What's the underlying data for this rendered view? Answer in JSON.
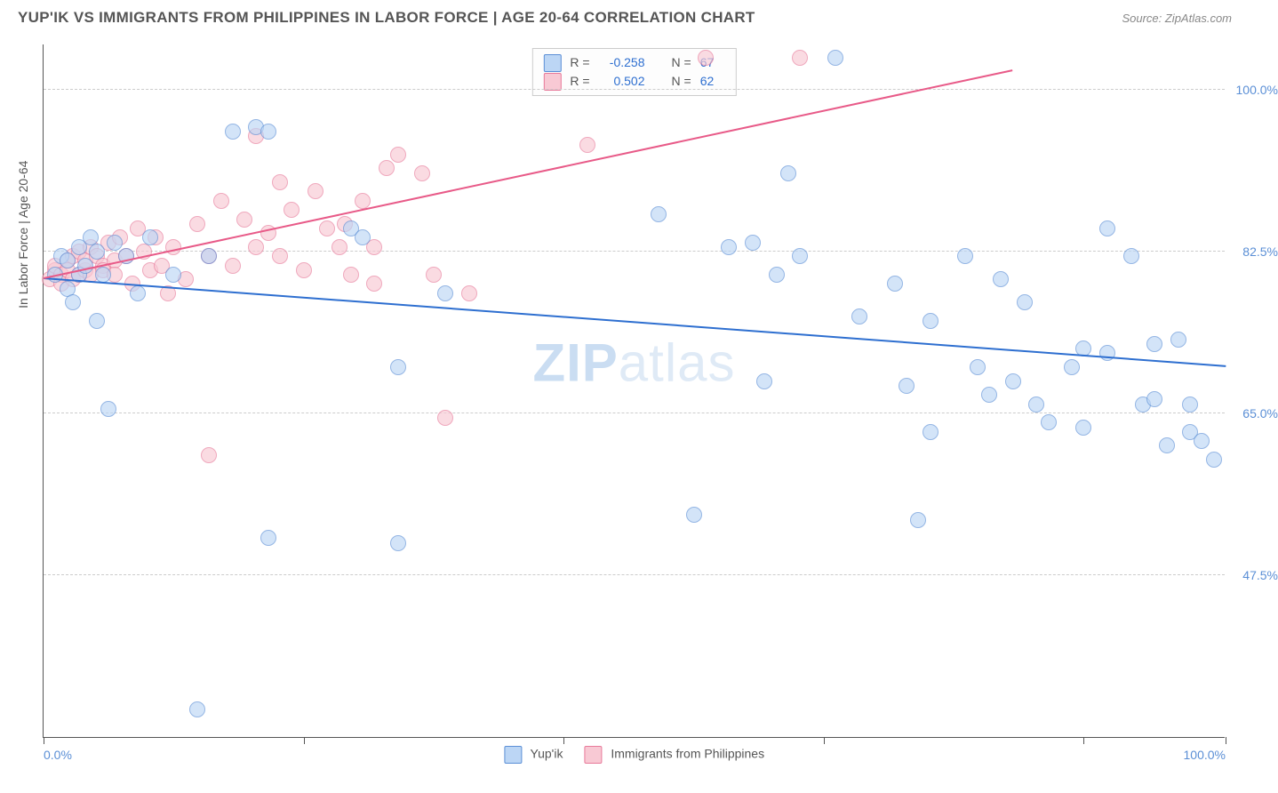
{
  "header": {
    "title": "YUP'IK VS IMMIGRANTS FROM PHILIPPINES IN LABOR FORCE | AGE 20-64 CORRELATION CHART",
    "source": "Source: ZipAtlas.com"
  },
  "watermark": {
    "part1": "ZIP",
    "part2": "atlas"
  },
  "chart": {
    "type": "scatter",
    "ylabel": "In Labor Force | Age 20-64",
    "background_color": "#ffffff",
    "grid_color": "#cccccc",
    "axis_color": "#555555",
    "label_color": "#5b8fd6",
    "xlim": [
      0,
      100
    ],
    "ylim": [
      30,
      105
    ],
    "yticks": [
      {
        "v": 47.5,
        "label": "47.5%"
      },
      {
        "v": 65.0,
        "label": "65.0%"
      },
      {
        "v": 82.5,
        "label": "82.5%"
      },
      {
        "v": 100.0,
        "label": "100.0%"
      }
    ],
    "xticks_major": [
      0,
      100
    ],
    "xticks_minor": [
      22,
      44,
      66,
      88
    ],
    "xtick_labels": {
      "0": "0.0%",
      "100": "100.0%"
    },
    "point_radius": 9,
    "point_opacity": 0.65,
    "series": {
      "blue": {
        "label": "Yup'ik",
        "fill_color": "#bcd6f5",
        "stroke_color": "#5b8fd6",
        "line_color": "#2e6fd0",
        "R": "-0.258",
        "N": "67",
        "trend": {
          "x1": 0,
          "y1": 79.5,
          "x2": 100,
          "y2": 70.0
        },
        "points": [
          [
            1,
            80
          ],
          [
            1.5,
            82
          ],
          [
            2,
            78.5
          ],
          [
            2,
            81.5
          ],
          [
            2.5,
            77
          ],
          [
            3,
            83
          ],
          [
            3,
            80
          ],
          [
            3.5,
            81
          ],
          [
            4,
            84
          ],
          [
            4.5,
            82.5
          ],
          [
            4.5,
            75
          ],
          [
            5,
            80
          ],
          [
            5.5,
            65.5
          ],
          [
            6,
            83.5
          ],
          [
            7,
            82
          ],
          [
            8,
            78
          ],
          [
            9,
            84
          ],
          [
            11,
            80
          ],
          [
            13,
            33
          ],
          [
            14,
            82
          ],
          [
            16,
            95.5
          ],
          [
            18,
            96
          ],
          [
            19,
            95.5
          ],
          [
            19,
            51.5
          ],
          [
            26,
            85
          ],
          [
            27,
            84
          ],
          [
            30,
            70
          ],
          [
            30,
            51
          ],
          [
            34,
            78
          ],
          [
            52,
            86.5
          ],
          [
            55,
            54
          ],
          [
            58,
            83
          ],
          [
            60,
            83.5
          ],
          [
            61,
            68.5
          ],
          [
            62,
            80
          ],
          [
            63,
            91
          ],
          [
            64,
            82
          ],
          [
            67,
            103.5
          ],
          [
            69,
            75.5
          ],
          [
            72,
            79
          ],
          [
            73,
            68
          ],
          [
            74,
            53.5
          ],
          [
            75,
            63
          ],
          [
            75,
            75
          ],
          [
            78,
            82
          ],
          [
            79,
            70
          ],
          [
            80,
            67
          ],
          [
            81,
            79.5
          ],
          [
            82,
            68.5
          ],
          [
            83,
            77
          ],
          [
            84,
            66
          ],
          [
            85,
            64
          ],
          [
            87,
            70
          ],
          [
            88,
            72
          ],
          [
            88,
            63.5
          ],
          [
            90,
            71.5
          ],
          [
            90,
            85
          ],
          [
            92,
            82
          ],
          [
            93,
            66
          ],
          [
            94,
            72.5
          ],
          [
            94,
            66.5
          ],
          [
            95,
            61.5
          ],
          [
            96,
            73
          ],
          [
            97,
            63
          ],
          [
            97,
            66
          ],
          [
            98,
            62
          ],
          [
            99,
            60
          ]
        ]
      },
      "pink": {
        "label": "Immigrants from Philippines",
        "fill_color": "#f8c9d4",
        "stroke_color": "#e87a9a",
        "line_color": "#e85a88",
        "R": "0.502",
        "N": "62",
        "trend": {
          "x1": 0,
          "y1": 79.5,
          "x2": 82,
          "y2": 102.0
        },
        "points": [
          [
            0.5,
            79.5
          ],
          [
            1,
            80.5
          ],
          [
            1,
            81
          ],
          [
            1.5,
            80
          ],
          [
            1.5,
            79
          ],
          [
            2,
            81.5
          ],
          [
            2,
            80.5
          ],
          [
            2.5,
            82
          ],
          [
            2.5,
            79.5
          ],
          [
            3,
            80
          ],
          [
            3,
            82.5
          ],
          [
            3.5,
            80.5
          ],
          [
            3.5,
            81.5
          ],
          [
            4,
            80
          ],
          [
            4,
            83
          ],
          [
            4.5,
            82
          ],
          [
            5,
            81
          ],
          [
            5,
            80.5
          ],
          [
            5.5,
            83.5
          ],
          [
            6,
            81.5
          ],
          [
            6,
            80
          ],
          [
            6.5,
            84
          ],
          [
            7,
            82
          ],
          [
            7.5,
            79
          ],
          [
            8,
            85
          ],
          [
            8.5,
            82.5
          ],
          [
            9,
            80.5
          ],
          [
            9.5,
            84
          ],
          [
            10,
            81
          ],
          [
            10.5,
            78
          ],
          [
            11,
            83
          ],
          [
            12,
            79.5
          ],
          [
            13,
            85.5
          ],
          [
            14,
            82
          ],
          [
            14,
            60.5
          ],
          [
            15,
            88
          ],
          [
            16,
            81
          ],
          [
            17,
            86
          ],
          [
            18,
            83
          ],
          [
            18,
            95
          ],
          [
            19,
            84.5
          ],
          [
            20,
            90
          ],
          [
            20,
            82
          ],
          [
            21,
            87
          ],
          [
            22,
            80.5
          ],
          [
            23,
            89
          ],
          [
            24,
            85
          ],
          [
            25,
            83
          ],
          [
            25.5,
            85.5
          ],
          [
            26,
            80
          ],
          [
            27,
            88
          ],
          [
            28,
            79
          ],
          [
            28,
            83
          ],
          [
            29,
            91.5
          ],
          [
            30,
            93
          ],
          [
            32,
            91
          ],
          [
            33,
            80
          ],
          [
            34,
            64.5
          ],
          [
            36,
            78
          ],
          [
            46,
            94
          ],
          [
            56,
            103.5
          ],
          [
            64,
            103.5
          ]
        ]
      }
    }
  },
  "typography": {
    "title_fontsize": 17,
    "label_fontsize": 14,
    "font_family": "Arial"
  }
}
